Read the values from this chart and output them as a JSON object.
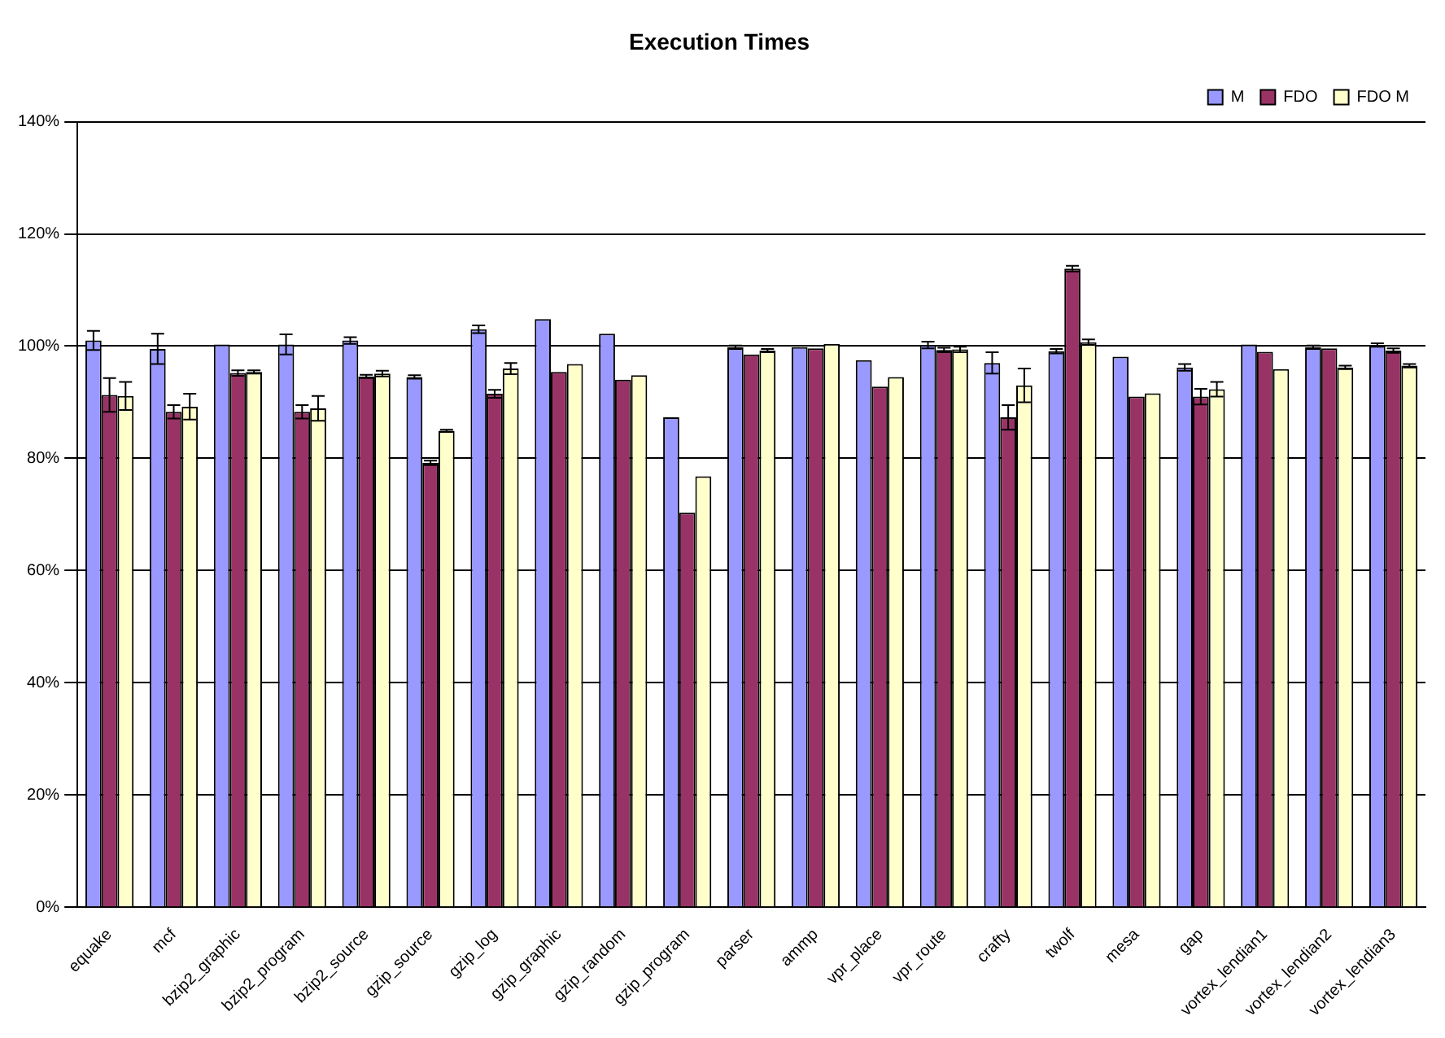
{
  "chart_data": {
    "type": "bar",
    "title": "Execution Times",
    "categories": [
      "equake",
      "mcf",
      "bzip2_graphic",
      "bzip2_program",
      "bzip2_source",
      "gzip_source",
      "gzip_log",
      "gzip_graphic",
      "gzip_random",
      "gzip_program",
      "parser",
      "ammp",
      "vpr_place",
      "vpr_route",
      "crafty",
      "twolf",
      "mesa",
      "gap",
      "vortex_lendian1",
      "vortex_lendian2",
      "vortex_lendian3"
    ],
    "series": [
      {
        "name": "M",
        "color": "#9999ff",
        "values": [
          101,
          99.5,
          100.3,
          100.3,
          101,
          94.5,
          103,
          104.8,
          102.2,
          87.3,
          99.8,
          99.8,
          97.5,
          100.2,
          97,
          99.1,
          98.1,
          96.2,
          100.3,
          99.8,
          100.2
        ],
        "errors": [
          1.7,
          2.7,
          null,
          1.8,
          0.6,
          0.3,
          0.7,
          null,
          null,
          null,
          0.3,
          null,
          null,
          0.6,
          1.9,
          0.4,
          null,
          0.6,
          null,
          0.3,
          0.3
        ]
      },
      {
        "name": "FDO",
        "color": "#993366",
        "values": [
          91.3,
          88.3,
          95.2,
          88.3,
          94.6,
          79.2,
          91.5,
          95.4,
          94,
          70.3,
          98.5,
          99.6,
          92.8,
          99.3,
          87.3,
          113.8,
          91,
          91,
          99,
          99.6,
          99.2
        ],
        "errors": [
          3,
          1.2,
          0.5,
          1.2,
          0.3,
          0.4,
          0.7,
          null,
          null,
          null,
          null,
          null,
          null,
          0.4,
          2.2,
          0.5,
          null,
          1.4,
          null,
          null,
          0.4
        ]
      },
      {
        "name": "FDO M",
        "color": "#ffffcc",
        "values": [
          91.1,
          89.2,
          95.4,
          88.9,
          95.1,
          84.9,
          96,
          96.8,
          94.8,
          76.8,
          99.2,
          100.4,
          94.5,
          99.4,
          93,
          100.7,
          91.6,
          92.3,
          95.9,
          96.2,
          96.5
        ],
        "errors": [
          2.5,
          2.3,
          0.3,
          2.2,
          0.5,
          0.2,
          1,
          null,
          null,
          null,
          0.3,
          null,
          null,
          0.5,
          3,
          0.5,
          null,
          1.3,
          null,
          0.3,
          0.3
        ]
      }
    ],
    "ylim": [
      0,
      140
    ],
    "yticks": [
      {
        "value": 0,
        "label": "0%"
      },
      {
        "value": 20,
        "label": "20%"
      },
      {
        "value": 40,
        "label": "40%"
      },
      {
        "value": 60,
        "label": "60%"
      },
      {
        "value": 80,
        "label": "80%"
      },
      {
        "value": 100,
        "label": "100%"
      },
      {
        "value": 120,
        "label": "120%"
      },
      {
        "value": 140,
        "label": "140%"
      }
    ],
    "grid": "y",
    "legend": "top right"
  }
}
